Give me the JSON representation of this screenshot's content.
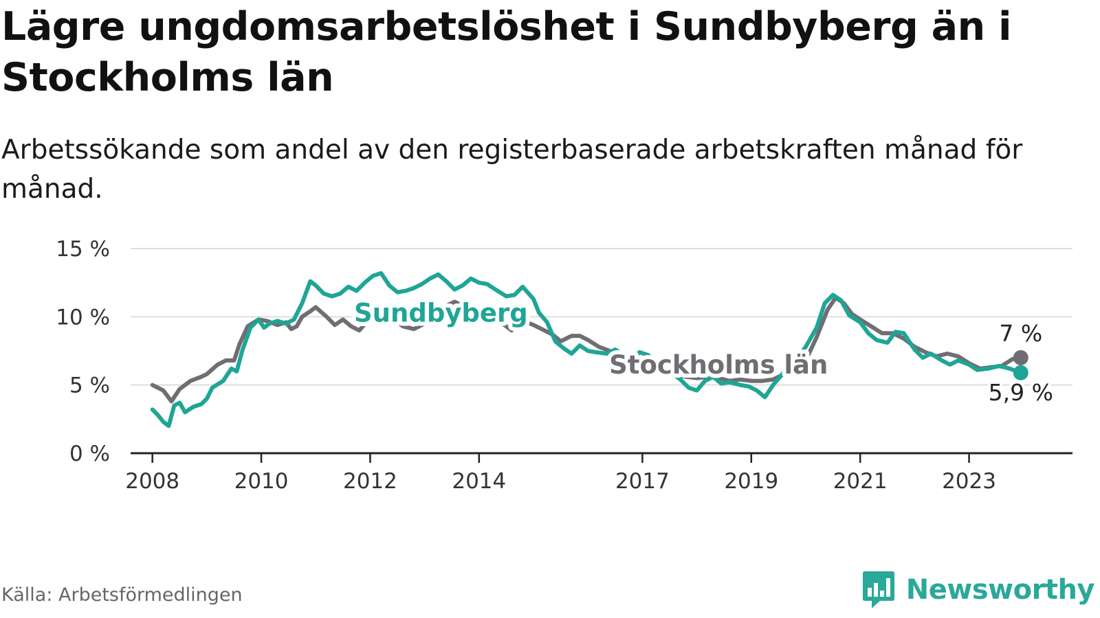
{
  "title": "Lägre ungdomsarbetslöshet i Sundbyberg än i Stockholms län",
  "subtitle": "Arbetssökande som andel av den registerbaserade arbetskraften månad för månad.",
  "source": "Källa: Arbetsförmedlingen",
  "brand": "Newsworthy",
  "colors": {
    "sundbyberg": "#1fa596",
    "stockholm": "#6e6e73",
    "grid": "#dddddd",
    "axis": "#222222"
  },
  "chart_data": {
    "type": "line",
    "title": "Lägre ungdomsarbetslöshet i Sundbyberg än i Stockholms län",
    "xlabel": "",
    "ylabel": "",
    "ylim": [
      0,
      15
    ],
    "xlim": [
      2007.6,
      2024.9
    ],
    "yticks": [
      0,
      5,
      10,
      15
    ],
    "ytick_labels": [
      "0 %",
      "5 %",
      "10 %",
      "15 %"
    ],
    "xticks": [
      2008,
      2010,
      2012,
      2014,
      2017,
      2019,
      2021,
      2023
    ],
    "xtick_labels": [
      "2008",
      "2010",
      "2012",
      "2014",
      "2017",
      "2019",
      "2021",
      "2023"
    ],
    "series": [
      {
        "name": "Stockholms län",
        "label": "Stockholms län",
        "color": "#6e6e73",
        "end_label": "7 %",
        "points": [
          [
            2008.0,
            5.0
          ],
          [
            2008.2,
            4.6
          ],
          [
            2008.35,
            3.8
          ],
          [
            2008.5,
            4.7
          ],
          [
            2008.7,
            5.3
          ],
          [
            2008.9,
            5.6
          ],
          [
            2009.0,
            5.8
          ],
          [
            2009.2,
            6.5
          ],
          [
            2009.35,
            6.8
          ],
          [
            2009.5,
            6.8
          ],
          [
            2009.6,
            8.0
          ],
          [
            2009.75,
            9.3
          ],
          [
            2009.95,
            9.8
          ],
          [
            2010.1,
            9.7
          ],
          [
            2010.3,
            9.4
          ],
          [
            2010.45,
            9.6
          ],
          [
            2010.55,
            9.1
          ],
          [
            2010.65,
            9.3
          ],
          [
            2010.75,
            10.0
          ],
          [
            2010.9,
            10.4
          ],
          [
            2011.0,
            10.7
          ],
          [
            2011.2,
            10.0
          ],
          [
            2011.35,
            9.4
          ],
          [
            2011.5,
            9.8
          ],
          [
            2011.65,
            9.3
          ],
          [
            2011.8,
            9.0
          ],
          [
            2012.0,
            9.9
          ],
          [
            2012.2,
            10.5
          ],
          [
            2012.4,
            10.0
          ],
          [
            2012.6,
            9.3
          ],
          [
            2012.8,
            9.1
          ],
          [
            2013.0,
            9.5
          ],
          [
            2013.2,
            10.5
          ],
          [
            2013.4,
            10.8
          ],
          [
            2013.55,
            11.1
          ],
          [
            2013.7,
            10.8
          ],
          [
            2014.0,
            10.2
          ],
          [
            2014.2,
            10.0
          ],
          [
            2014.4,
            9.6
          ],
          [
            2014.6,
            9.0
          ],
          [
            2014.75,
            9.8
          ],
          [
            2015.0,
            9.4
          ],
          [
            2015.2,
            9.0
          ],
          [
            2015.35,
            8.7
          ],
          [
            2015.5,
            8.2
          ],
          [
            2015.7,
            8.6
          ],
          [
            2015.85,
            8.6
          ],
          [
            2016.0,
            8.3
          ],
          [
            2016.2,
            7.8
          ],
          [
            2016.4,
            7.5
          ],
          [
            2016.6,
            7.2
          ],
          [
            2016.8,
            6.9
          ],
          [
            2017.0,
            6.6
          ],
          [
            2017.2,
            6.3
          ],
          [
            2017.4,
            6.0
          ],
          [
            2017.6,
            5.8
          ],
          [
            2017.8,
            5.6
          ],
          [
            2018.0,
            5.5
          ],
          [
            2018.2,
            5.6
          ],
          [
            2018.4,
            5.5
          ],
          [
            2018.6,
            5.3
          ],
          [
            2018.8,
            5.4
          ],
          [
            2019.0,
            5.3
          ],
          [
            2019.2,
            5.3
          ],
          [
            2019.4,
            5.4
          ],
          [
            2019.6,
            5.8
          ],
          [
            2019.8,
            6.2
          ],
          [
            2020.0,
            6.8
          ],
          [
            2020.2,
            8.5
          ],
          [
            2020.4,
            10.5
          ],
          [
            2020.55,
            11.4
          ],
          [
            2020.7,
            11.0
          ],
          [
            2020.85,
            10.2
          ],
          [
            2021.0,
            9.8
          ],
          [
            2021.2,
            9.3
          ],
          [
            2021.4,
            8.8
          ],
          [
            2021.6,
            8.8
          ],
          [
            2021.8,
            8.4
          ],
          [
            2022.0,
            7.8
          ],
          [
            2022.2,
            7.4
          ],
          [
            2022.4,
            7.1
          ],
          [
            2022.6,
            7.3
          ],
          [
            2022.8,
            7.1
          ],
          [
            2023.0,
            6.6
          ],
          [
            2023.2,
            6.2
          ],
          [
            2023.4,
            6.3
          ],
          [
            2023.6,
            6.4
          ],
          [
            2023.8,
            6.9
          ],
          [
            2023.95,
            7.0
          ]
        ]
      },
      {
        "name": "Sundbyberg",
        "label": "Sundbyberg",
        "color": "#1fa596",
        "end_label": "5,9 %",
        "points": [
          [
            2008.0,
            3.2
          ],
          [
            2008.1,
            2.8
          ],
          [
            2008.2,
            2.3
          ],
          [
            2008.3,
            2.0
          ],
          [
            2008.4,
            3.5
          ],
          [
            2008.5,
            3.7
          ],
          [
            2008.6,
            3.0
          ],
          [
            2008.75,
            3.4
          ],
          [
            2008.9,
            3.6
          ],
          [
            2009.0,
            4.0
          ],
          [
            2009.1,
            4.8
          ],
          [
            2009.3,
            5.3
          ],
          [
            2009.45,
            6.2
          ],
          [
            2009.55,
            6.0
          ],
          [
            2009.65,
            7.5
          ],
          [
            2009.8,
            9.2
          ],
          [
            2009.95,
            9.8
          ],
          [
            2010.05,
            9.2
          ],
          [
            2010.15,
            9.5
          ],
          [
            2010.3,
            9.7
          ],
          [
            2010.45,
            9.5
          ],
          [
            2010.6,
            9.8
          ],
          [
            2010.75,
            11.0
          ],
          [
            2010.9,
            12.6
          ],
          [
            2011.0,
            12.3
          ],
          [
            2011.15,
            11.7
          ],
          [
            2011.3,
            11.5
          ],
          [
            2011.45,
            11.7
          ],
          [
            2011.6,
            12.2
          ],
          [
            2011.75,
            11.9
          ],
          [
            2011.9,
            12.5
          ],
          [
            2012.05,
            13.0
          ],
          [
            2012.2,
            13.2
          ],
          [
            2012.35,
            12.3
          ],
          [
            2012.5,
            11.8
          ],
          [
            2012.65,
            11.9
          ],
          [
            2012.8,
            12.1
          ],
          [
            2012.95,
            12.4
          ],
          [
            2013.1,
            12.8
          ],
          [
            2013.25,
            13.1
          ],
          [
            2013.4,
            12.6
          ],
          [
            2013.55,
            12.0
          ],
          [
            2013.7,
            12.3
          ],
          [
            2013.85,
            12.8
          ],
          [
            2014.0,
            12.5
          ],
          [
            2014.15,
            12.4
          ],
          [
            2014.3,
            12.0
          ],
          [
            2014.5,
            11.5
          ],
          [
            2014.65,
            11.6
          ],
          [
            2014.8,
            12.2
          ],
          [
            2015.0,
            11.3
          ],
          [
            2015.1,
            10.3
          ],
          [
            2015.25,
            9.6
          ],
          [
            2015.4,
            8.2
          ],
          [
            2015.55,
            7.7
          ],
          [
            2015.7,
            7.3
          ],
          [
            2015.85,
            7.9
          ],
          [
            2016.0,
            7.5
          ],
          [
            2016.15,
            7.4
          ],
          [
            2016.35,
            7.3
          ],
          [
            2016.5,
            7.6
          ],
          [
            2016.65,
            7.2
          ],
          [
            2016.8,
            6.9
          ],
          [
            2016.95,
            7.4
          ],
          [
            2017.1,
            7.2
          ],
          [
            2017.3,
            6.6
          ],
          [
            2017.5,
            6.0
          ],
          [
            2017.7,
            5.4
          ],
          [
            2017.85,
            4.8
          ],
          [
            2018.0,
            4.6
          ],
          [
            2018.15,
            5.3
          ],
          [
            2018.3,
            5.6
          ],
          [
            2018.45,
            5.1
          ],
          [
            2018.6,
            5.2
          ],
          [
            2018.8,
            5.0
          ],
          [
            2018.95,
            4.9
          ],
          [
            2019.1,
            4.6
          ],
          [
            2019.25,
            4.1
          ],
          [
            2019.4,
            5.0
          ],
          [
            2019.55,
            5.7
          ],
          [
            2019.7,
            6.5
          ],
          [
            2019.85,
            7.0
          ],
          [
            2020.0,
            7.8
          ],
          [
            2020.2,
            9.2
          ],
          [
            2020.35,
            11.0
          ],
          [
            2020.5,
            11.6
          ],
          [
            2020.65,
            11.2
          ],
          [
            2020.8,
            10.1
          ],
          [
            2021.0,
            9.6
          ],
          [
            2021.15,
            8.8
          ],
          [
            2021.3,
            8.3
          ],
          [
            2021.5,
            8.1
          ],
          [
            2021.65,
            8.9
          ],
          [
            2021.8,
            8.8
          ],
          [
            2022.0,
            7.6
          ],
          [
            2022.15,
            7.0
          ],
          [
            2022.3,
            7.3
          ],
          [
            2022.5,
            6.8
          ],
          [
            2022.65,
            6.5
          ],
          [
            2022.8,
            6.8
          ],
          [
            2023.0,
            6.5
          ],
          [
            2023.15,
            6.1
          ],
          [
            2023.35,
            6.2
          ],
          [
            2023.55,
            6.4
          ],
          [
            2023.75,
            6.2
          ],
          [
            2023.95,
            5.9
          ]
        ]
      }
    ]
  }
}
